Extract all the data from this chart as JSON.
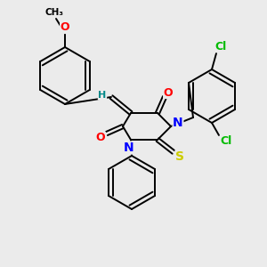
{
  "bg_color": "#ebebeb",
  "atom_colors": {
    "O": "#ff0000",
    "N": "#0000ff",
    "S": "#cccc00",
    "Cl": "#00bb00",
    "C": "#000000",
    "H": "#008888"
  },
  "font_size_atom": 8,
  "fig_size": [
    3.0,
    3.0
  ],
  "dpi": 100,
  "ring_lw": 1.4,
  "bond_lw": 1.4
}
